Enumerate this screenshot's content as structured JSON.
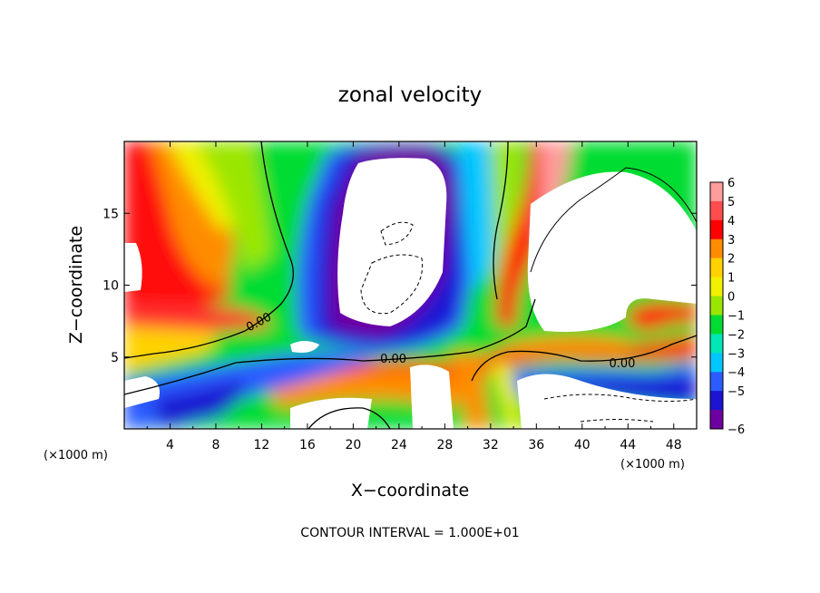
{
  "chart_data": {
    "type": "heatmap",
    "title": "zonal velocity",
    "xlabel": "X−coordinate",
    "ylabel": "Z−coordinate",
    "x_unit_left": "(×1000 m)",
    "x_unit_right": "(×1000 m)",
    "xlim": [
      0,
      50
    ],
    "ylim": [
      0,
      20
    ],
    "x_ticks": [
      4,
      8,
      12,
      16,
      20,
      24,
      28,
      32,
      36,
      40,
      44,
      48
    ],
    "x_tick_labels": [
      "4",
      "8",
      "12",
      "16",
      "20",
      "24",
      "28",
      "32",
      "36",
      "40",
      "44",
      "48"
    ],
    "y_ticks": [
      5,
      10,
      15
    ],
    "y_tick_labels": [
      "5",
      "10",
      "15"
    ],
    "colorbar": {
      "levels": [
        6,
        5,
        4,
        3,
        2,
        1,
        0,
        -1,
        -2,
        -3,
        -4,
        -5,
        -6
      ],
      "labels": [
        "6",
        "5",
        "4",
        "3",
        "2",
        "1",
        "0",
        "−1",
        "−2",
        "−3",
        "−4",
        "−5",
        "−6"
      ],
      "colors": [
        "#ff9c9c",
        "#ff4d4d",
        "#ff0000",
        "#ff8c00",
        "#ffd200",
        "#f0f000",
        "#9be600",
        "#00dc32",
        "#00e6b4",
        "#00c8ff",
        "#2a5cff",
        "#1c14d2",
        "#6e00a0"
      ]
    },
    "contour_labels": [
      {
        "text": "0.00",
        "x": 11.9,
        "z": 7.2,
        "rotation": -28
      },
      {
        "text": "0.00",
        "x": 23.5,
        "z": 4.6,
        "rotation": 0
      },
      {
        "text": "0.00",
        "x": 43.5,
        "z": 4.3,
        "rotation": 0
      }
    ],
    "footer": "CONTOUR INTERVAL = 1.000E+01"
  }
}
